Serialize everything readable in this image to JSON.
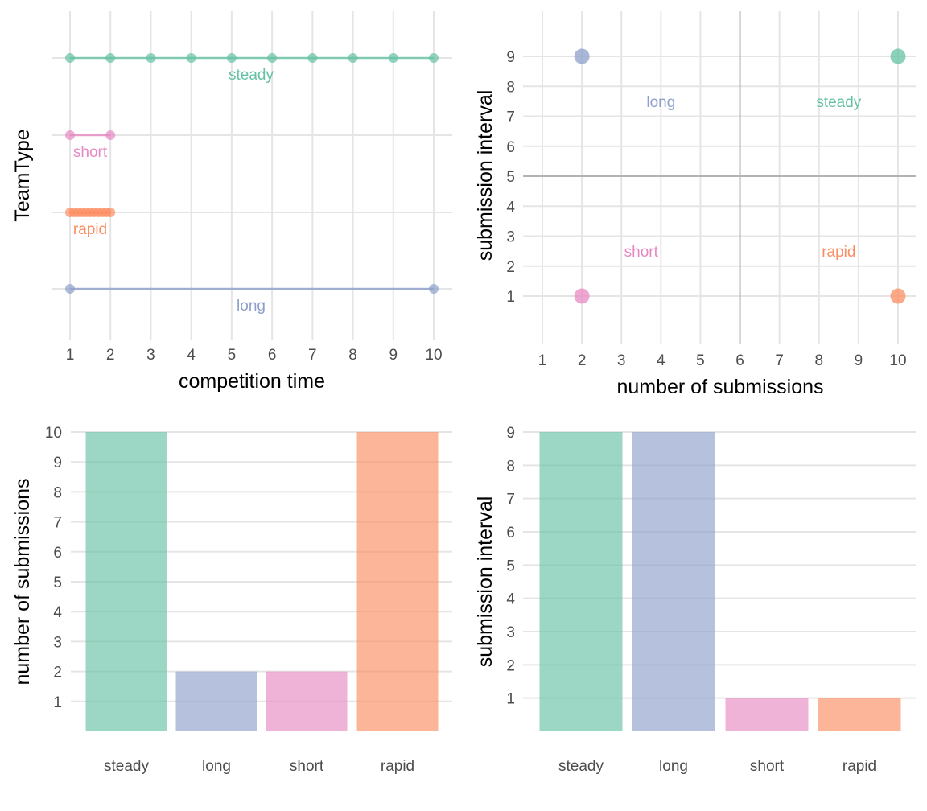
{
  "colors": {
    "steady": "#66c2a5",
    "long": "#8da0cb",
    "short": "#e78ac3",
    "rapid": "#fc8d62"
  },
  "chart_data": [
    {
      "type": "line",
      "xlabel": "competition time",
      "ylabel": "TeamType",
      "xlim": [
        1,
        10
      ],
      "xticks": [
        1,
        2,
        3,
        4,
        5,
        6,
        7,
        8,
        9,
        10
      ],
      "grid": true,
      "series": [
        {
          "name": "steady",
          "x": [
            1,
            2,
            3,
            4,
            5,
            6,
            7,
            8,
            9,
            10
          ]
        },
        {
          "name": "short",
          "x": [
            1,
            2
          ]
        },
        {
          "name": "rapid",
          "x": [
            1,
            1.1,
            1.2,
            1.3,
            1.4,
            1.5,
            1.6,
            1.7,
            1.8,
            1.9,
            2
          ]
        },
        {
          "name": "long",
          "x": [
            1,
            10
          ]
        }
      ]
    },
    {
      "type": "scatter",
      "xlabel": "number of submissions",
      "ylabel": "submission interval",
      "xlim": [
        1,
        10
      ],
      "ylim": [
        1,
        9
      ],
      "xticks": [
        1,
        2,
        3,
        4,
        5,
        6,
        7,
        8,
        9,
        10
      ],
      "yticks": [
        1,
        2,
        3,
        4,
        5,
        6,
        7,
        8,
        9
      ],
      "reference_lines": {
        "x": 6,
        "y": 5
      },
      "grid": true,
      "points": [
        {
          "name": "long",
          "x": 2,
          "y": 9
        },
        {
          "name": "steady",
          "x": 10,
          "y": 9
        },
        {
          "name": "short",
          "x": 2,
          "y": 1
        },
        {
          "name": "rapid",
          "x": 10,
          "y": 1
        }
      ],
      "quadrant_labels": [
        {
          "text": "long",
          "x": 4,
          "y": 7.5
        },
        {
          "text": "steady",
          "x": 8.5,
          "y": 7.5
        },
        {
          "text": "short",
          "x": 3.5,
          "y": 2.5
        },
        {
          "text": "rapid",
          "x": 8.5,
          "y": 2.5
        }
      ]
    },
    {
      "type": "bar",
      "ylabel": "number of submissions",
      "categories": [
        "steady",
        "long",
        "short",
        "rapid"
      ],
      "values": [
        10,
        2,
        2,
        10
      ],
      "ylim": [
        0,
        10
      ],
      "yticks": [
        1,
        2,
        3,
        4,
        5,
        6,
        7,
        8,
        9,
        10
      ],
      "grid": true
    },
    {
      "type": "bar",
      "ylabel": "submission interval",
      "categories": [
        "steady",
        "long",
        "short",
        "rapid"
      ],
      "values": [
        9,
        9,
        1,
        1
      ],
      "ylim": [
        0,
        9
      ],
      "yticks": [
        1,
        2,
        3,
        4,
        5,
        6,
        7,
        8,
        9
      ],
      "grid": true
    }
  ]
}
